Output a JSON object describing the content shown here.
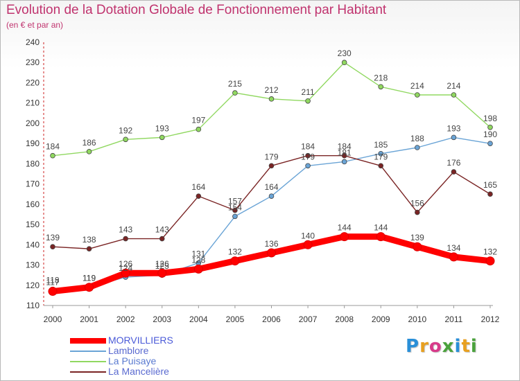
{
  "header": {
    "title": "Evolution de la Dotation Globale de Fonctionnement par Habitant",
    "subtitle": "(en € et par an)"
  },
  "brand": {
    "text": "Proxiti",
    "letter_colors": [
      "#2a8fd8",
      "#e8a020",
      "#d83a8a",
      "#4aa23c",
      "#2a8fd8",
      "#e8a020",
      "#4aa23c"
    ]
  },
  "chart_data": {
    "type": "line",
    "title": "Evolution de la Dotation Globale de Fonctionnement par Habitant",
    "subtitle": "(en € et par an)",
    "x": [
      "2000",
      "2001",
      "2002",
      "2003",
      "2004",
      "2005",
      "2006",
      "2007",
      "2008",
      "2009",
      "2010",
      "2011",
      "2012"
    ],
    "ylim": [
      110,
      240
    ],
    "yticks": [
      110,
      120,
      130,
      140,
      150,
      160,
      170,
      180,
      190,
      200,
      210,
      220,
      230,
      240
    ],
    "grid": false,
    "legend": "bottom-left",
    "series": [
      {
        "name": "MORVILLIERS",
        "color": "#ff0000",
        "values": [
          117,
          119,
          126,
          126,
          128,
          132,
          136,
          140,
          144,
          144,
          139,
          134,
          132
        ]
      },
      {
        "name": "Lamblore",
        "color": "#6aa4d6",
        "values": [
          118,
          119,
          124,
          125,
          131,
          154,
          164,
          179,
          181,
          185,
          188,
          193,
          190
        ]
      },
      {
        "name": "La Puisaye",
        "color": "#90d860",
        "values": [
          184,
          186,
          192,
          193,
          197,
          215,
          212,
          211,
          230,
          218,
          214,
          214,
          198
        ]
      },
      {
        "name": "La Mancelière",
        "color": "#7a2424",
        "values": [
          139,
          138,
          143,
          143,
          164,
          157,
          179,
          184,
          184,
          179,
          156,
          176,
          165
        ]
      }
    ]
  }
}
